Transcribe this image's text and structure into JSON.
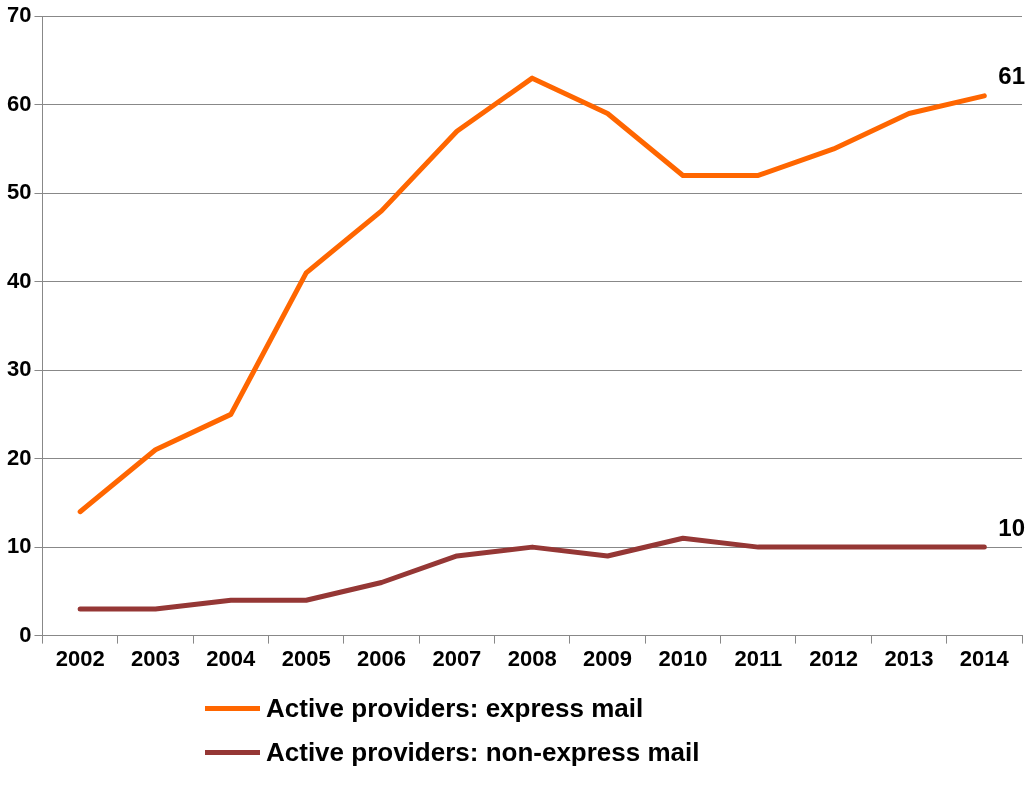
{
  "chart_data": {
    "type": "line",
    "categories": [
      "2002",
      "2003",
      "2004",
      "2005",
      "2006",
      "2007",
      "2008",
      "2009",
      "2010",
      "2011",
      "2012",
      "2013",
      "2014"
    ],
    "series": [
      {
        "name": "Active providers: express mail",
        "color": "#ff6600",
        "values": [
          14,
          21,
          25,
          41,
          48,
          57,
          63,
          59,
          52,
          52,
          55,
          59,
          61
        ],
        "value_labels": [
          null,
          null,
          null,
          null,
          null,
          null,
          null,
          null,
          null,
          null,
          null,
          null,
          "61"
        ]
      },
      {
        "name": "Active providers: non-express mail",
        "color": "#953735",
        "values": [
          3,
          3,
          4,
          4,
          6,
          9,
          10,
          9,
          11,
          10,
          10,
          10,
          10
        ],
        "value_labels": [
          null,
          null,
          null,
          null,
          null,
          null,
          null,
          null,
          null,
          null,
          null,
          null,
          "10"
        ]
      }
    ],
    "ylim": [
      0,
      70
    ],
    "yticks": [
      0,
      10,
      20,
      30,
      40,
      50,
      60,
      70
    ],
    "grid": "y",
    "legend": "bottom",
    "marker": "none",
    "line_style": "solid"
  }
}
